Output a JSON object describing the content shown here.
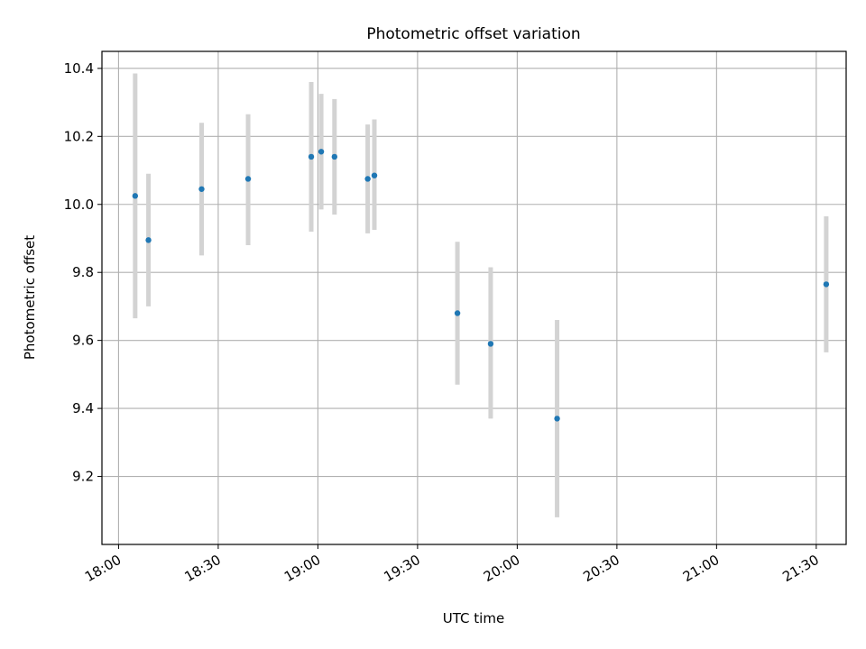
{
  "chart_data": {
    "type": "scatter",
    "title": "Photometric offset variation",
    "xlabel": "UTC time",
    "ylabel": "Photometric offset",
    "x_ticks": [
      "18:00",
      "18:30",
      "19:00",
      "19:30",
      "20:00",
      "20:30",
      "21:00",
      "21:30"
    ],
    "y_ticks": [
      "9.2",
      "9.4",
      "9.6",
      "9.8",
      "10.0",
      "10.2",
      "10.4"
    ],
    "xlim": [
      "17:55",
      "21:39"
    ],
    "ylim": [
      9.0,
      10.45
    ],
    "grid": true,
    "point_color": "#1f77b4",
    "errorbar_color": "#d3d3d3",
    "points": [
      {
        "x": "18:05",
        "y": 10.025,
        "err_low": 9.665,
        "err_high": 10.385
      },
      {
        "x": "18:09",
        "y": 9.895,
        "err_low": 9.7,
        "err_high": 10.09
      },
      {
        "x": "18:25",
        "y": 10.045,
        "err_low": 9.85,
        "err_high": 10.24
      },
      {
        "x": "18:39",
        "y": 10.075,
        "err_low": 9.88,
        "err_high": 10.265
      },
      {
        "x": "18:58",
        "y": 10.14,
        "err_low": 9.92,
        "err_high": 10.36
      },
      {
        "x": "19:01",
        "y": 10.155,
        "err_low": 9.985,
        "err_high": 10.325
      },
      {
        "x": "19:05",
        "y": 10.14,
        "err_low": 9.97,
        "err_high": 10.31
      },
      {
        "x": "19:15",
        "y": 10.075,
        "err_low": 9.915,
        "err_high": 10.235
      },
      {
        "x": "19:17",
        "y": 10.085,
        "err_low": 9.925,
        "err_high": 10.25
      },
      {
        "x": "19:42",
        "y": 9.68,
        "err_low": 9.47,
        "err_high": 9.89
      },
      {
        "x": "19:52",
        "y": 9.59,
        "err_low": 9.37,
        "err_high": 9.815
      },
      {
        "x": "20:12",
        "y": 9.37,
        "err_low": 9.08,
        "err_high": 9.66
      },
      {
        "x": "21:33",
        "y": 9.765,
        "err_low": 9.565,
        "err_high": 9.965
      }
    ]
  }
}
